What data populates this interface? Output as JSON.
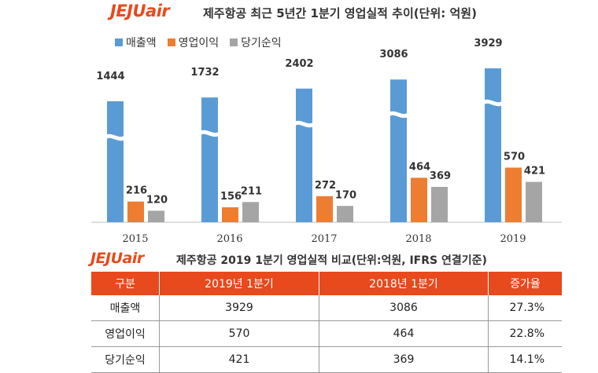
{
  "header": {
    "logo_text": "JEJUair",
    "chart_title": "제주항공 최근 5년간 1분기 영업실적 추이(단위: 억원)"
  },
  "chart_data": {
    "type": "bar",
    "title": "제주항공 최근 5년간 1분기 영업실적 추이(단위: 억원)",
    "categories": [
      "2015",
      "2016",
      "2017",
      "2018",
      "2019"
    ],
    "series": [
      {
        "name": "매출액",
        "values": [
          1444,
          1732,
          2402,
          3086,
          3929
        ],
        "color": "#5b9bd5",
        "broken_axis": true
      },
      {
        "name": "영업이익",
        "values": [
          216,
          156,
          272,
          464,
          570
        ],
        "color": "#ed7d31"
      },
      {
        "name": "당기순익",
        "values": [
          120,
          211,
          170,
          369,
          421
        ],
        "color": "#a5a5a5"
      }
    ],
    "legend_position": "top-left",
    "grid": false
  },
  "table": {
    "logo_text": "JEJUair",
    "title": "제주항공 2019 1분기 영업실적 비교(단위:억원, IFRS 연결기준)",
    "headers": [
      "구분",
      "2019년 1분기",
      "2018년 1분기",
      "증가율"
    ],
    "rows": [
      [
        "매출액",
        "3929",
        "3086",
        "27.3%"
      ],
      [
        "영업이익",
        "570",
        "464",
        "22.8%"
      ],
      [
        "당기순익",
        "421",
        "369",
        "14.1%"
      ]
    ]
  }
}
